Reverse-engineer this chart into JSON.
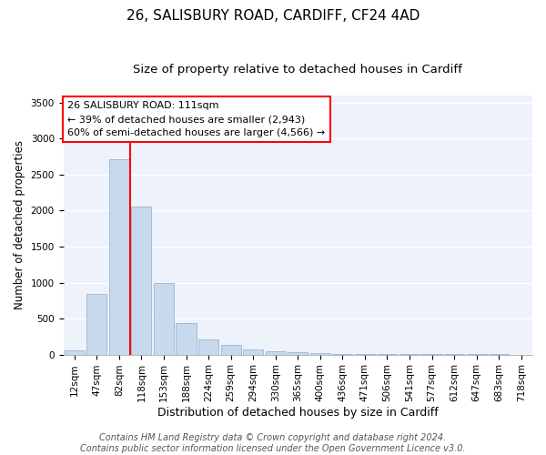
{
  "title1": "26, SALISBURY ROAD, CARDIFF, CF24 4AD",
  "title2": "Size of property relative to detached houses in Cardiff",
  "xlabel": "Distribution of detached houses by size in Cardiff",
  "ylabel": "Number of detached properties",
  "categories": [
    "12sqm",
    "47sqm",
    "82sqm",
    "118sqm",
    "153sqm",
    "188sqm",
    "224sqm",
    "259sqm",
    "294sqm",
    "330sqm",
    "365sqm",
    "400sqm",
    "436sqm",
    "471sqm",
    "506sqm",
    "541sqm",
    "577sqm",
    "612sqm",
    "647sqm",
    "683sqm",
    "718sqm"
  ],
  "values": [
    60,
    840,
    2720,
    2060,
    1000,
    440,
    205,
    130,
    70,
    45,
    30,
    20,
    12,
    8,
    6,
    5,
    4,
    3,
    2,
    2,
    1
  ],
  "bar_color": "#c9d9ed",
  "bar_edge_color": "#9ab4d0",
  "annotation_text": "26 SALISBURY ROAD: 111sqm\n← 39% of detached houses are smaller (2,943)\n60% of semi-detached houses are larger (4,566) →",
  "annotation_box_color": "white",
  "annotation_box_edge_color": "red",
  "line_color": "red",
  "line_x_index": 2.5,
  "ylim": [
    0,
    3600
  ],
  "yticks": [
    0,
    500,
    1000,
    1500,
    2000,
    2500,
    3000,
    3500
  ],
  "footer": "Contains HM Land Registry data © Crown copyright and database right 2024.\nContains public sector information licensed under the Open Government Licence v3.0.",
  "background_color": "#eef2fb",
  "grid_color": "white",
  "title1_fontsize": 11,
  "title2_fontsize": 9.5,
  "xlabel_fontsize": 9,
  "ylabel_fontsize": 8.5,
  "tick_fontsize": 7.5,
  "annotation_fontsize": 8,
  "footer_fontsize": 7
}
